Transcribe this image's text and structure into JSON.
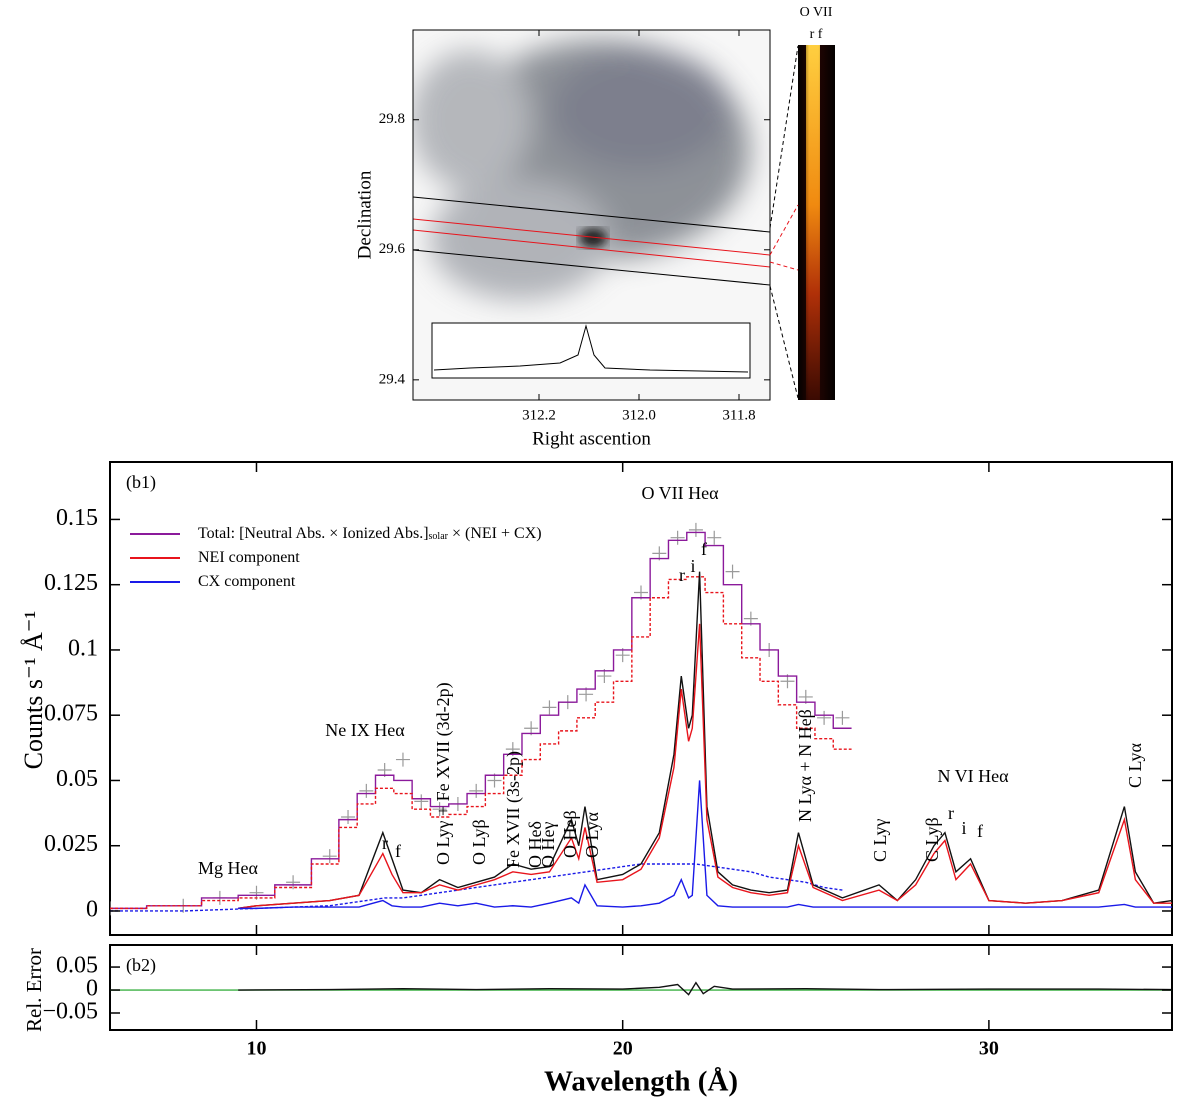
{
  "chart_data": [
    {
      "type": "image",
      "xlabel": "Right ascention",
      "ylabel": "Declination",
      "xlim": [
        312.452,
        311.738
      ],
      "ylim": [
        29.369,
        29.938
      ],
      "xticks": [
        312.2,
        {
          "value": 312.0,
          "label": "312.0"
        },
        311.8
      ],
      "yticks": [
        29.8,
        29.6,
        29.4
      ],
      "strip_label": "O VII",
      "strip_lines": "r f"
    },
    {
      "type": "line",
      "panel": "(b1)",
      "ylabel": "Counts s⁻¹ Å⁻¹",
      "xlim": [
        6,
        35
      ],
      "ylim": [
        -0.0092,
        0.172
      ],
      "yticks": [
        0,
        0.025,
        0.05,
        0.075,
        0.1,
        0.125,
        0.15
      ],
      "legend": [
        {
          "parts": [
            "Total: [Neutral Abs. × Ionized Abs.]",
            "solar",
            " × (NEI + CX)"
          ],
          "color": "#8b1a9b"
        },
        {
          "parts": [
            "NEI component"
          ],
          "color": "#e8141c"
        },
        {
          "parts": [
            "CX component"
          ],
          "color": "#1a1ae8"
        }
      ],
      "annotations": [
        "Mg Heα",
        "Ne IX Heα",
        "r",
        "f",
        "O Lyγ + Fe XVII (3d-2p)",
        "O Lyβ",
        "Fe XVII (3s-2p)",
        "O Heδ",
        "O Heγ",
        "O Heβ",
        "O Lyα",
        "O VII Heα",
        "r",
        "i",
        "f",
        "N Lyα + N Heβ",
        "C Lyγ",
        "C Lyβ",
        "N VI Heα",
        "r",
        "i",
        "f",
        "C Lyα"
      ],
      "series": [
        {
          "x": [
            6,
            8,
            9,
            10,
            11,
            12,
            12.5,
            13,
            13.5,
            14,
            14.5,
            15,
            15.5,
            16,
            16.5,
            17,
            17.5,
            18,
            18.5,
            19,
            19.5,
            20,
            20.5,
            21,
            21.5,
            22,
            22.5,
            23,
            23.5,
            24,
            24.5,
            25,
            25.5,
            26
          ],
          "color": "#9a9a9a",
          "marker": "plus",
          "values": [
            0.001,
            0.002,
            0.005,
            0.007,
            0.011,
            0.021,
            0.036,
            0.046,
            0.054,
            0.058,
            0.042,
            0.039,
            0.041,
            0.046,
            0.05,
            0.062,
            0.07,
            0.078,
            0.08,
            0.083,
            0.09,
            0.098,
            0.122,
            0.137,
            0.143,
            0.146,
            0.143,
            0.13,
            0.112,
            0.1,
            0.088,
            0.082,
            0.074,
            0.074
          ]
        },
        {
          "x": [
            6,
            8,
            9,
            10,
            11,
            12,
            12.5,
            13,
            13.5,
            14,
            14.5,
            15,
            15.5,
            16,
            16.5,
            17,
            17.5,
            18,
            18.5,
            19,
            19.5,
            20,
            20.5,
            21,
            21.5,
            22,
            22.5,
            23,
            23.5,
            24,
            24.5,
            25,
            25.5,
            26
          ],
          "color": "#8b1a9b",
          "step": true,
          "dash": false,
          "values": [
            0.001,
            0.002,
            0.005,
            0.006,
            0.01,
            0.02,
            0.035,
            0.045,
            0.052,
            0.05,
            0.043,
            0.04,
            0.041,
            0.045,
            0.052,
            0.06,
            0.068,
            0.075,
            0.08,
            0.085,
            0.092,
            0.1,
            0.12,
            0.135,
            0.142,
            0.145,
            0.14,
            0.125,
            0.11,
            0.1,
            0.09,
            0.08,
            0.075,
            0.07
          ]
        },
        {
          "x": [
            6,
            8,
            9,
            10,
            11,
            12,
            12.5,
            13,
            13.5,
            14,
            14.5,
            15,
            15.5,
            16,
            16.5,
            17,
            17.5,
            18,
            18.5,
            19,
            19.5,
            20,
            20.5,
            21,
            21.5,
            22,
            22.5,
            23,
            23.5,
            24,
            24.5,
            25,
            25.5,
            26
          ],
          "color": "#e8141c",
          "step": true,
          "dash": true,
          "values": [
            0.001,
            0.002,
            0.004,
            0.005,
            0.009,
            0.018,
            0.032,
            0.041,
            0.047,
            0.045,
            0.039,
            0.036,
            0.037,
            0.04,
            0.045,
            0.052,
            0.058,
            0.064,
            0.069,
            0.074,
            0.08,
            0.088,
            0.105,
            0.12,
            0.127,
            0.128,
            0.122,
            0.11,
            0.097,
            0.088,
            0.079,
            0.07,
            0.066,
            0.062
          ]
        },
        {
          "x": [
            6,
            8,
            9,
            10,
            11,
            12,
            12.5,
            13,
            13.5,
            14,
            14.5,
            15,
            15.5,
            16,
            16.5,
            17,
            17.5,
            18,
            18.5,
            19,
            19.5,
            20,
            20.5,
            21,
            21.5,
            22,
            22.5,
            23,
            23.5,
            24,
            24.5,
            25,
            25.5,
            26
          ],
          "color": "#1a1ae8",
          "step": false,
          "dash": true,
          "values": [
            0,
            0,
            0.0005,
            0.001,
            0.0015,
            0.002,
            0.003,
            0.004,
            0.005,
            0.005,
            0.006,
            0.007,
            0.008,
            0.009,
            0.01,
            0.011,
            0.012,
            0.013,
            0.014,
            0.015,
            0.016,
            0.017,
            0.018,
            0.018,
            0.018,
            0.018,
            0.017,
            0.016,
            0.015,
            0.013,
            0.012,
            0.011,
            0.009,
            0.008
          ]
        },
        {
          "x": [
            9.5,
            10,
            11,
            12,
            12.8,
            13.45,
            13.7,
            14,
            14.5,
            15,
            15.5,
            16,
            16.5,
            17,
            17.5,
            18,
            18.6,
            18.8,
            18.97,
            19.3,
            20,
            20.5,
            21,
            21.4,
            21.6,
            21.8,
            21.9,
            22.1,
            22.3,
            22.6,
            23,
            23.5,
            24,
            24.5,
            24.8,
            25.2,
            26,
            27,
            27.5,
            28,
            28.5,
            28.8,
            29.1,
            29.5,
            30,
            31,
            32,
            33,
            33.7,
            34,
            34.5,
            35
          ],
          "color": "#111111",
          "step": false,
          "dash": false,
          "values": [
            0.001,
            0.002,
            0.003,
            0.004,
            0.006,
            0.03,
            0.02,
            0.008,
            0.007,
            0.012,
            0.009,
            0.011,
            0.013,
            0.018,
            0.016,
            0.017,
            0.035,
            0.025,
            0.04,
            0.012,
            0.014,
            0.018,
            0.03,
            0.06,
            0.09,
            0.07,
            0.075,
            0.13,
            0.04,
            0.015,
            0.01,
            0.008,
            0.007,
            0.008,
            0.03,
            0.01,
            0.005,
            0.01,
            0.004,
            0.012,
            0.025,
            0.03,
            0.015,
            0.02,
            0.004,
            0.003,
            0.004,
            0.008,
            0.04,
            0.015,
            0.003,
            0.004
          ]
        },
        {
          "x": [
            9.5,
            10,
            11,
            12,
            12.8,
            13.45,
            13.7,
            14,
            14.5,
            15,
            15.5,
            16,
            16.5,
            17,
            17.5,
            18,
            18.6,
            18.8,
            18.97,
            19.3,
            20,
            20.5,
            21,
            21.4,
            21.6,
            21.8,
            21.9,
            22.1,
            22.3,
            22.6,
            23,
            23.5,
            24,
            24.5,
            24.8,
            25.2,
            26,
            27,
            27.5,
            28,
            28.5,
            28.8,
            29.1,
            29.5,
            30,
            31,
            32,
            33,
            33.7,
            34,
            34.5,
            35
          ],
          "color": "#e8141c",
          "step": false,
          "dash": false,
          "values": [
            0.001,
            0.002,
            0.003,
            0.004,
            0.006,
            0.022,
            0.014,
            0.007,
            0.007,
            0.01,
            0.008,
            0.01,
            0.012,
            0.015,
            0.014,
            0.015,
            0.028,
            0.02,
            0.032,
            0.011,
            0.012,
            0.016,
            0.028,
            0.055,
            0.085,
            0.065,
            0.07,
            0.11,
            0.035,
            0.013,
            0.009,
            0.007,
            0.006,
            0.007,
            0.025,
            0.009,
            0.004,
            0.008,
            0.004,
            0.01,
            0.022,
            0.027,
            0.012,
            0.018,
            0.004,
            0.003,
            0.004,
            0.007,
            0.035,
            0.012,
            0.003,
            0.003
          ]
        },
        {
          "x": [
            9.5,
            10,
            11,
            12,
            12.8,
            13.45,
            13.7,
            14,
            14.5,
            15,
            15.5,
            16,
            16.5,
            17,
            17.5,
            18,
            18.6,
            18.8,
            18.97,
            19.3,
            20,
            20.5,
            21,
            21.4,
            21.6,
            21.8,
            21.9,
            22.1,
            22.3,
            22.6,
            23,
            23.5,
            24,
            24.5,
            24.8,
            25.2,
            26,
            27,
            27.5,
            28,
            28.5,
            28.8,
            29.1,
            29.5,
            30,
            31,
            32,
            33,
            33.7,
            34,
            34.5,
            35
          ],
          "color": "#1a1ae8",
          "step": false,
          "dash": false,
          "values": [
            0.001,
            0.001,
            0.0015,
            0.0015,
            0.0015,
            0.004,
            0.002,
            0.0015,
            0.0015,
            0.003,
            0.002,
            0.003,
            0.0015,
            0.002,
            0.0015,
            0.003,
            0.005,
            0.003,
            0.01,
            0.002,
            0.0015,
            0.002,
            0.003,
            0.006,
            0.012,
            0.005,
            0.006,
            0.05,
            0.006,
            0.002,
            0.0015,
            0.0015,
            0.0015,
            0.0015,
            0.0025,
            0.0015,
            0.0015,
            0.0015,
            0.0015,
            0.0015,
            0.0015,
            0.0015,
            0.0015,
            0.0015,
            0.0015,
            0.0015,
            0.0015,
            0.0015,
            0.0025,
            0.0015,
            0.0015,
            0.0015
          ]
        }
      ]
    },
    {
      "type": "line",
      "panel": "(b2)",
      "ylabel": "Rel. Error",
      "xlabel": "Wavelength (Å)",
      "xlim": [
        6,
        35
      ],
      "ylim": [
        -0.087,
        0.098
      ],
      "xticks": [
        10,
        20,
        30
      ],
      "yticks": [
        0.05,
        0,
        {
          "value": -0.05,
          "label": "−0.05"
        }
      ],
      "series": [
        {
          "x": [
            6,
            35
          ],
          "color": "#3cb043",
          "values": [
            0,
            0
          ]
        },
        {
          "x": [
            9.5,
            12,
            14,
            16,
            18,
            20,
            21,
            21.5,
            21.8,
            22,
            22.2,
            22.5,
            23,
            25,
            27,
            30,
            33,
            35
          ],
          "color": "#111111",
          "values": [
            0,
            0.001,
            0.003,
            0.001,
            0.003,
            0.002,
            0.006,
            0.012,
            -0.01,
            0.016,
            -0.008,
            0.008,
            0.002,
            0.003,
            0.001,
            0.002,
            0.002,
            0.001
          ]
        }
      ]
    }
  ]
}
